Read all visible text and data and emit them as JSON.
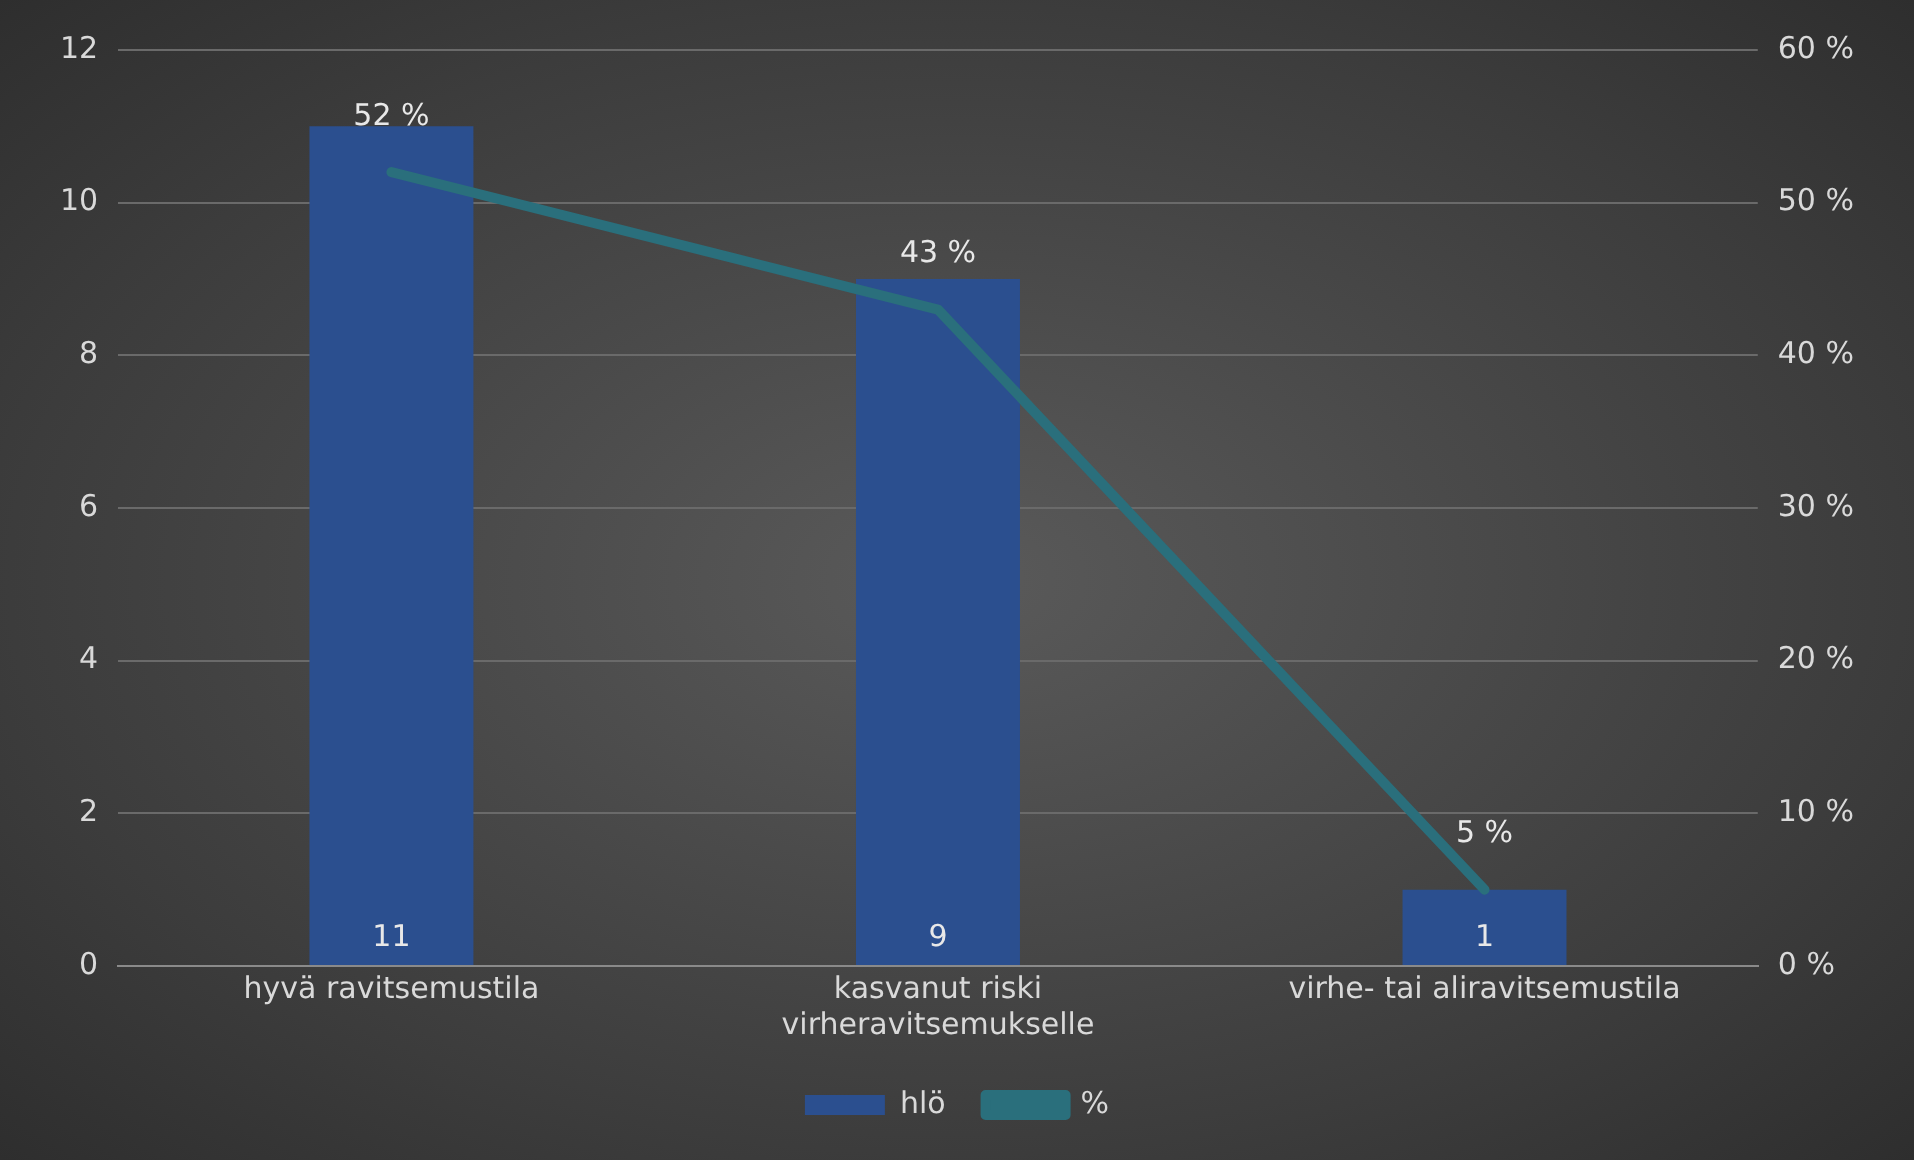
{
  "chart_data": {
    "type": "bar",
    "categories": [
      "hyvä ravitsemustila",
      "kasvanut riski virheravitsemukselle",
      "virhe- tai aliravitsemustila"
    ],
    "series": [
      {
        "name": "hlö",
        "color": "#2b4f8f",
        "values": [
          11,
          9,
          1
        ],
        "value_labels": [
          "11",
          "9",
          "1"
        ]
      },
      {
        "name": "%",
        "type": "line",
        "axis": "y2",
        "color": "#2a6f7c",
        "values": [
          52,
          43,
          5
        ],
        "value_labels": [
          "52 %",
          "43 %",
          "5 %"
        ]
      }
    ],
    "ylim": [
      0,
      12
    ],
    "yticks": [
      0,
      2,
      4,
      6,
      8,
      10,
      12
    ],
    "y2lim": [
      0,
      60
    ],
    "y2ticks": [
      {
        "value": 0,
        "label": "0 %"
      },
      {
        "value": 10,
        "label": "10 %"
      },
      {
        "value": 20,
        "label": "20 %"
      },
      {
        "value": 30,
        "label": "30 %"
      },
      {
        "value": 40,
        "label": "40 %"
      },
      {
        "value": 50,
        "label": "50 %"
      },
      {
        "value": 60,
        "label": "60 %"
      }
    ],
    "grid": "y",
    "legend": "bottom",
    "marker": "none",
    "line_style": "solid"
  }
}
